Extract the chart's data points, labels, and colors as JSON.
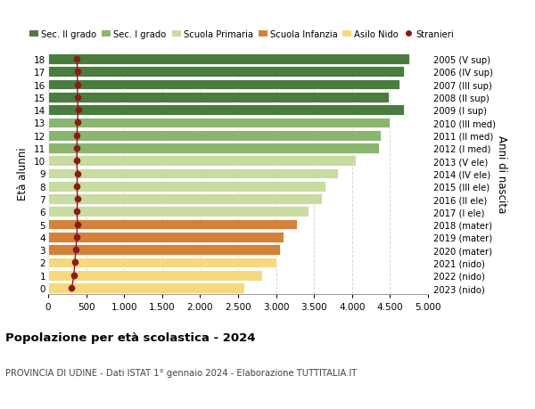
{
  "ages": [
    0,
    1,
    2,
    3,
    4,
    5,
    6,
    7,
    8,
    9,
    10,
    11,
    12,
    13,
    14,
    15,
    16,
    17,
    18
  ],
  "bar_values": [
    2580,
    2820,
    3000,
    3050,
    3100,
    3280,
    3430,
    3600,
    3650,
    3820,
    4050,
    4350,
    4380,
    4500,
    4680,
    4480,
    4630,
    4680,
    4750
  ],
  "stranieri_values": [
    310,
    340,
    350,
    365,
    375,
    385,
    380,
    385,
    380,
    385,
    375,
    380,
    380,
    385,
    395,
    385,
    385,
    385,
    380
  ],
  "bar_colors": [
    "#f5d97e",
    "#f5d97e",
    "#f5d97e",
    "#d4823a",
    "#d4823a",
    "#d4823a",
    "#c8dba0",
    "#c8dba0",
    "#c8dba0",
    "#c8dba0",
    "#c8dba0",
    "#8ab56e",
    "#8ab56e",
    "#8ab56e",
    "#4a7c40",
    "#4a7c40",
    "#4a7c40",
    "#4a7c40",
    "#4a7c40"
  ],
  "right_labels": [
    "2023 (nido)",
    "2022 (nido)",
    "2021 (nido)",
    "2020 (mater)",
    "2019 (mater)",
    "2018 (mater)",
    "2017 (I ele)",
    "2016 (II ele)",
    "2015 (III ele)",
    "2014 (IV ele)",
    "2013 (V ele)",
    "2012 (I med)",
    "2011 (II med)",
    "2010 (III med)",
    "2009 (I sup)",
    "2008 (II sup)",
    "2007 (III sup)",
    "2006 (IV sup)",
    "2005 (V sup)"
  ],
  "legend_labels": [
    "Sec. II grado",
    "Sec. I grado",
    "Scuola Primaria",
    "Scuola Infanzia",
    "Asilo Nido",
    "Stranieri"
  ],
  "legend_colors": [
    "#4a7c40",
    "#8ab56e",
    "#c8dba0",
    "#d4823a",
    "#f5d97e",
    "#8b1a1a"
  ],
  "ylabel_left": "Età alunni",
  "ylabel_right": "Anni di nascita",
  "title": "Popolazione per età scolastica - 2024",
  "subtitle": "PROVINCIA DI UDINE - Dati ISTAT 1° gennaio 2024 - Elaborazione TUTTITALIA.IT",
  "xlim": [
    0,
    5000
  ],
  "xticks": [
    0,
    500,
    1000,
    1500,
    2000,
    2500,
    3000,
    3500,
    4000,
    4500,
    5000
  ],
  "background_color": "#ffffff",
  "bar_height": 0.82,
  "stranieri_color": "#8b1a1a"
}
